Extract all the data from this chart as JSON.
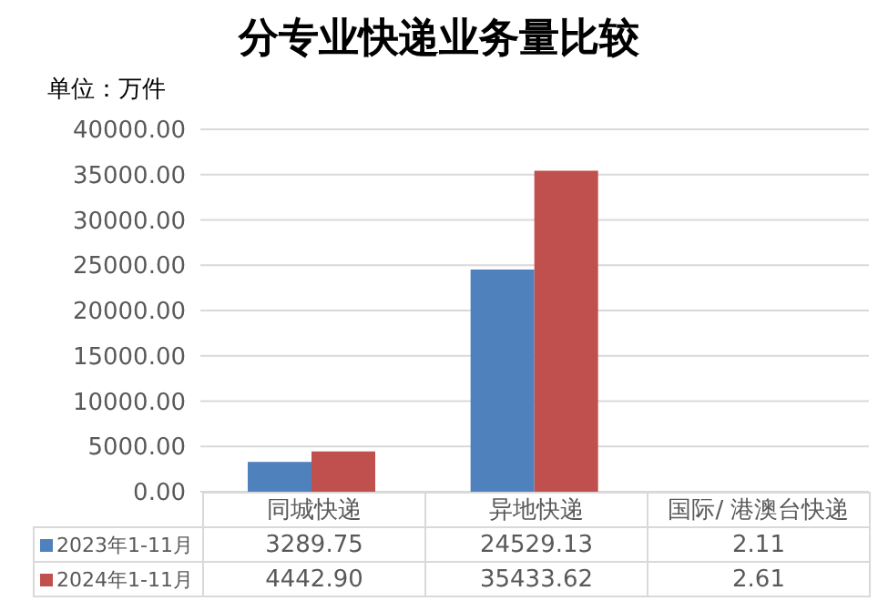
{
  "chart_data": {
    "type": "bar",
    "title": "分专业快递业务量比较",
    "ylabel": "单位：万件",
    "categories": [
      "同城快递",
      "异地快递",
      "国际/ 港澳台快递"
    ],
    "series": [
      {
        "name": "2023年1-11月",
        "color": "#4f81bd",
        "values": [
          3289.75,
          24529.13,
          2.11
        ],
        "value_labels": [
          "3289.75",
          "24529.13",
          "2.11"
        ]
      },
      {
        "name": "2024年1-11月",
        "color": "#c0504d",
        "values": [
          4442.9,
          35433.62,
          2.61
        ],
        "value_labels": [
          "4442.90",
          "35433.62",
          "2.61"
        ]
      }
    ],
    "ylim": [
      0,
      40000
    ],
    "yticks": [
      {
        "value": 0,
        "label": "0.00"
      },
      {
        "value": 5000,
        "label": "5000.00"
      },
      {
        "value": 10000,
        "label": "10000.00"
      },
      {
        "value": 15000,
        "label": "15000.00"
      },
      {
        "value": 20000,
        "label": "20000.00"
      },
      {
        "value": 25000,
        "label": "25000.00"
      },
      {
        "value": 30000,
        "label": "30000.00"
      },
      {
        "value": 35000,
        "label": "35000.00"
      },
      {
        "value": 40000,
        "label": "40000.00"
      }
    ],
    "grid": "y",
    "legend": "bottom"
  }
}
